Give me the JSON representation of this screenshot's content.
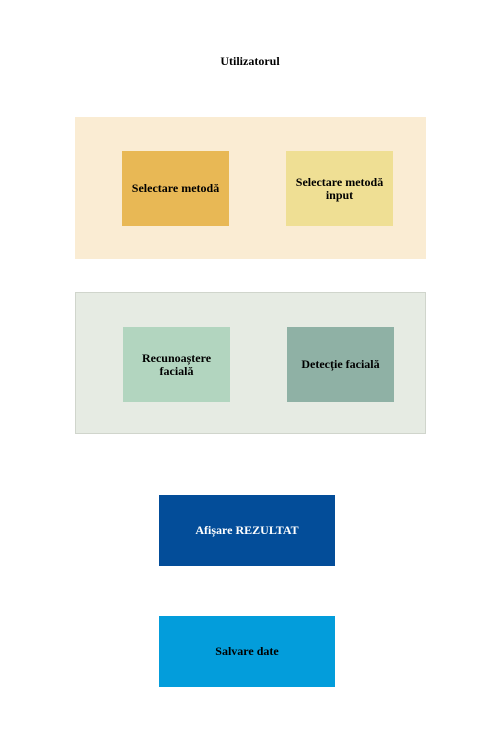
{
  "title": "Utilizatorul",
  "colors": {
    "group_selection_bg": "#faecd3",
    "group_recognition_bg": "#e6ebe3",
    "selectare_metoda": "#e8b855",
    "selectare_input": "#efdf94",
    "recunoastere": "#b2d5bf",
    "detectie": "#8fb1a5",
    "afisare_rezultat": "#034d99",
    "salvare_date": "#039ddb"
  },
  "group_selection": {
    "left_label": "Selectare metodă",
    "right_label": "Selectare metodă input"
  },
  "group_recognition": {
    "left_label": "Recunoaștere facială",
    "right_label": "Detecție facială"
  },
  "afisare_rezultat": "Afișare REZULTAT",
  "salvare_date": "Salvare date"
}
